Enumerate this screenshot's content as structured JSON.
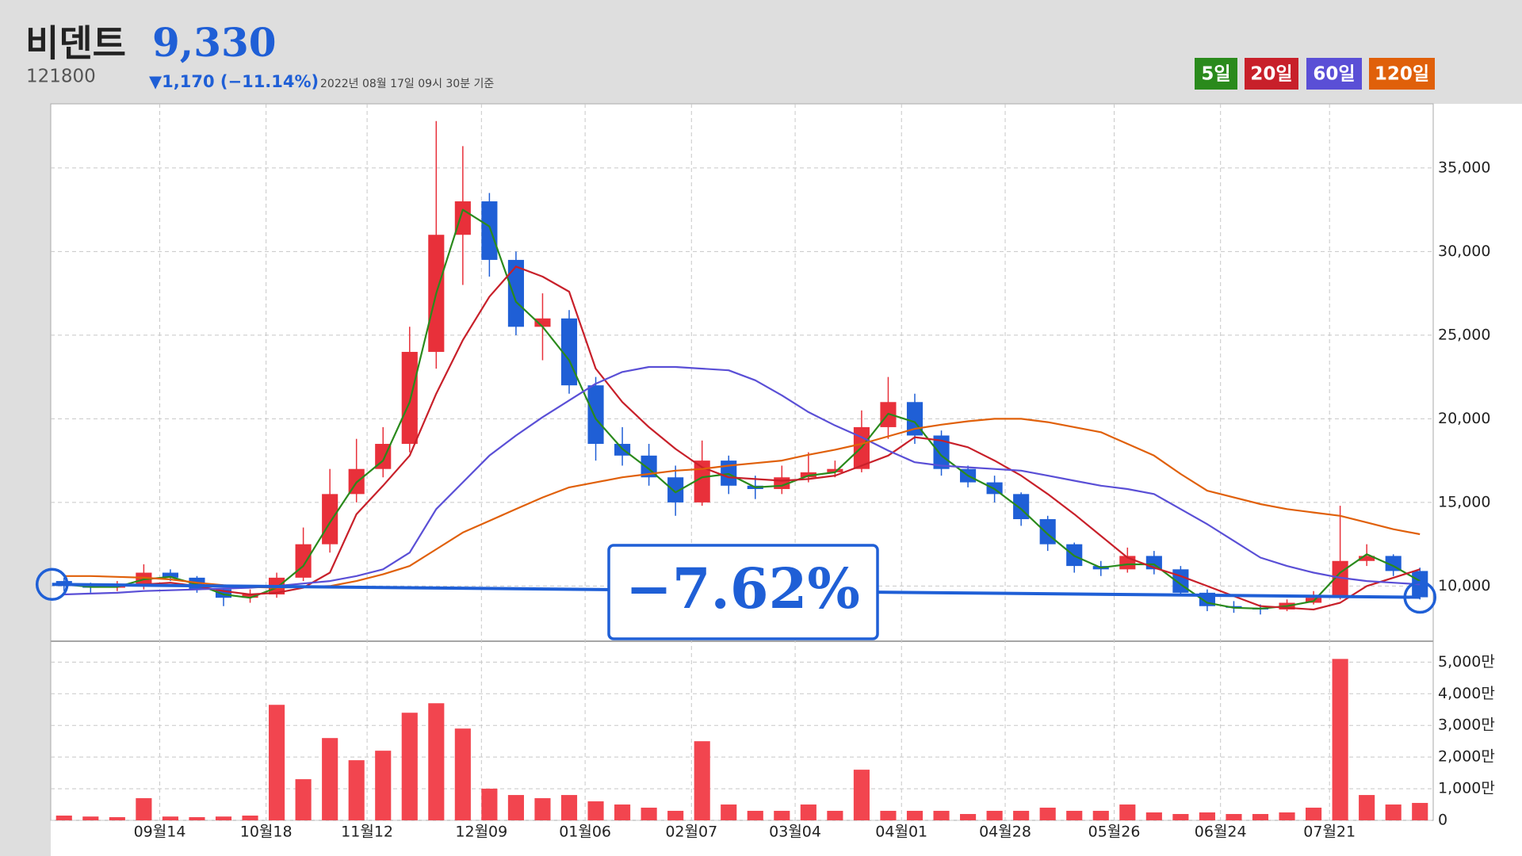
{
  "header": {
    "title": "비덴트",
    "price": "9,330",
    "code": "121800",
    "change": "▼1,170 (−11.14%)",
    "timestamp": "2022년 08월 17일 09시 30분 기준"
  },
  "chart_data": {
    "type": "candlestick",
    "up_color": "#e8303a",
    "down_color": "#1f5fd6",
    "grid": true,
    "xlim": [
      -0.5,
      51.5
    ],
    "xticks": [
      {
        "value": 3.6,
        "label": "09월14"
      },
      {
        "value": 7.6,
        "label": "10월18"
      },
      {
        "value": 11.4,
        "label": "11월12"
      },
      {
        "value": 15.7,
        "label": "12월09"
      },
      {
        "value": 19.6,
        "label": "01월06"
      },
      {
        "value": 23.6,
        "label": "02월07"
      },
      {
        "value": 27.5,
        "label": "03월04"
      },
      {
        "value": 31.5,
        "label": "04월01"
      },
      {
        "value": 35.4,
        "label": "04월28"
      },
      {
        "value": 39.5,
        "label": "05월26"
      },
      {
        "value": 43.5,
        "label": "06월24"
      },
      {
        "value": 47.6,
        "label": "07월21"
      }
    ],
    "ylim": [
      6750,
      38830
    ],
    "yticks": [
      {
        "value": 10000,
        "label": "10,000"
      },
      {
        "value": 15000,
        "label": "15,000"
      },
      {
        "value": 20000,
        "label": "20,000"
      },
      {
        "value": 25000,
        "label": "25,000"
      },
      {
        "value": 30000,
        "label": "30,000"
      },
      {
        "value": 35000,
        "label": "35,000"
      }
    ],
    "open": [
      10300,
      10000,
      9900,
      10000,
      10800,
      10500,
      9800,
      9300,
      9500,
      10500,
      12500,
      15500,
      17000,
      18500,
      24000,
      31000,
      33000,
      29500,
      25500,
      26000,
      22000,
      18500,
      17800,
      16500,
      15000,
      17500,
      16000,
      15800,
      16500,
      16800,
      17000,
      19500,
      21000,
      19000,
      17000,
      16200,
      15500,
      14000,
      12500,
      11200,
      11000,
      11800,
      11000,
      9600,
      8800,
      8700,
      8600,
      9000,
      9300,
      11500,
      11800,
      10900
    ],
    "high": [
      10500,
      10200,
      10300,
      11300,
      11000,
      10600,
      9900,
      9800,
      10800,
      13500,
      17000,
      18800,
      19500,
      25500,
      37800,
      36300,
      33500,
      30000,
      27500,
      26500,
      22500,
      19500,
      18500,
      17200,
      18700,
      17800,
      16600,
      17200,
      18000,
      17500,
      20500,
      22500,
      21500,
      19300,
      17200,
      16600,
      15600,
      14200,
      12600,
      11500,
      12300,
      12100,
      11200,
      9800,
      9100,
      8900,
      9200,
      9700,
      14800,
      12500,
      11900,
      11100
    ],
    "low": [
      9700,
      9600,
      9700,
      9800,
      10300,
      9600,
      8800,
      9000,
      9300,
      10300,
      12000,
      15000,
      16500,
      18000,
      23000,
      28000,
      28500,
      25000,
      23500,
      21500,
      17500,
      17200,
      16000,
      14200,
      14800,
      15500,
      15200,
      15500,
      16200,
      16500,
      16800,
      18800,
      18500,
      16600,
      15900,
      15000,
      13600,
      12100,
      10800,
      10600,
      10800,
      10700,
      9400,
      8500,
      8400,
      8300,
      8500,
      8900,
      9200,
      11200,
      10600,
      9200
    ],
    "close": [
      10000,
      9900,
      10000,
      10800,
      10500,
      9800,
      9300,
      9500,
      10500,
      12500,
      15500,
      17000,
      18500,
      24000,
      31000,
      33000,
      29500,
      25500,
      26000,
      22000,
      18500,
      17800,
      16500,
      15000,
      17500,
      16000,
      15800,
      16500,
      16800,
      17000,
      19500,
      21000,
      19000,
      17000,
      16200,
      15500,
      14000,
      12500,
      11200,
      11000,
      11800,
      11000,
      9600,
      8800,
      8700,
      8600,
      9000,
      9300,
      11500,
      11800,
      10900,
      9330
    ],
    "series": [
      {
        "name": "5일",
        "color": "#2a8a1c",
        "values": [
          10100,
          9950,
          9950,
          10400,
          10550,
          10100,
          9500,
          9300,
          9900,
          11200,
          13800,
          16200,
          17500,
          21000,
          27500,
          32500,
          31500,
          27000,
          25500,
          23500,
          20000,
          18200,
          17000,
          15600,
          16500,
          16700,
          15900,
          16000,
          16600,
          16800,
          18300,
          20300,
          19800,
          17800,
          16600,
          15800,
          14600,
          13100,
          11800,
          11100,
          11300,
          11300,
          10100,
          9000,
          8700,
          8650,
          8800,
          9100,
          10800,
          11900,
          11200,
          10300
        ]
      },
      {
        "name": "20일",
        "color": "#c8202a",
        "values": [
          10100,
          10050,
          10050,
          10100,
          10200,
          10000,
          9700,
          9500,
          9600,
          9900,
          10800,
          14300,
          16000,
          17800,
          21500,
          24700,
          27300,
          29100,
          28500,
          27600,
          23000,
          21000,
          19500,
          18200,
          17100,
          16500,
          16400,
          16300,
          16400,
          16600,
          17200,
          17800,
          18900,
          18700,
          18300,
          17500,
          16600,
          15500,
          14300,
          13000,
          11700,
          11100,
          10600,
          10000,
          9400,
          8800,
          8700,
          8600,
          9000,
          10000,
          10500,
          11000
        ]
      },
      {
        "name": "60일",
        "color": "#5a4fd6",
        "values": [
          9500,
          9550,
          9600,
          9700,
          9750,
          9800,
          9850,
          9900,
          10000,
          10150,
          10300,
          10600,
          11000,
          12000,
          14600,
          16200,
          17800,
          19000,
          20100,
          21100,
          22100,
          22800,
          23100,
          23100,
          23000,
          22900,
          22300,
          21400,
          20400,
          19600,
          18900,
          18100,
          17400,
          17200,
          17100,
          17000,
          16900,
          16600,
          16300,
          16000,
          15800,
          15500,
          14600,
          13700,
          12700,
          11700,
          11200,
          10800,
          10500,
          10300,
          10200,
          10100
        ]
      },
      {
        "name": "120일",
        "color": "#e0600a",
        "values": [
          10600,
          10600,
          10550,
          10500,
          10400,
          10200,
          10050,
          9950,
          9900,
          9950,
          10000,
          10300,
          10700,
          11200,
          12200,
          13200,
          13900,
          14600,
          15300,
          15900,
          16200,
          16500,
          16700,
          16900,
          17000,
          17200,
          17350,
          17500,
          17850,
          18150,
          18500,
          18950,
          19400,
          19650,
          19850,
          20000,
          20000,
          19800,
          19500,
          19200,
          18500,
          17800,
          16700,
          15700,
          15300,
          14900,
          14600,
          14400,
          14200,
          13800,
          13400,
          13100
        ]
      }
    ],
    "annotation": {
      "text": "−7.62%",
      "color": "#1f5fd6",
      "from": [
        0,
        10100
      ],
      "to": [
        51,
        9330
      ]
    },
    "volume": {
      "color": "#f2454f",
      "ylim": [
        0,
        5610
      ],
      "yticks": [
        0,
        {
          "value": 1000,
          "label": "1,000만"
        },
        {
          "value": 2000,
          "label": "2,000만"
        },
        {
          "value": 3000,
          "label": "3,000만"
        },
        {
          "value": 4000,
          "label": "4,000만"
        },
        {
          "value": 5000,
          "label": "5,000만"
        }
      ],
      "values": [
        150,
        120,
        100,
        700,
        120,
        100,
        120,
        150,
        3650,
        1300,
        2600,
        1900,
        2200,
        3400,
        3700,
        2900,
        1000,
        800,
        700,
        800,
        600,
        500,
        400,
        300,
        2500,
        500,
        300,
        300,
        500,
        300,
        1600,
        300,
        300,
        300,
        200,
        300,
        300,
        400,
        300,
        300,
        500,
        250,
        200,
        250,
        200,
        200,
        250,
        400,
        5100,
        800,
        500,
        550
      ]
    }
  }
}
